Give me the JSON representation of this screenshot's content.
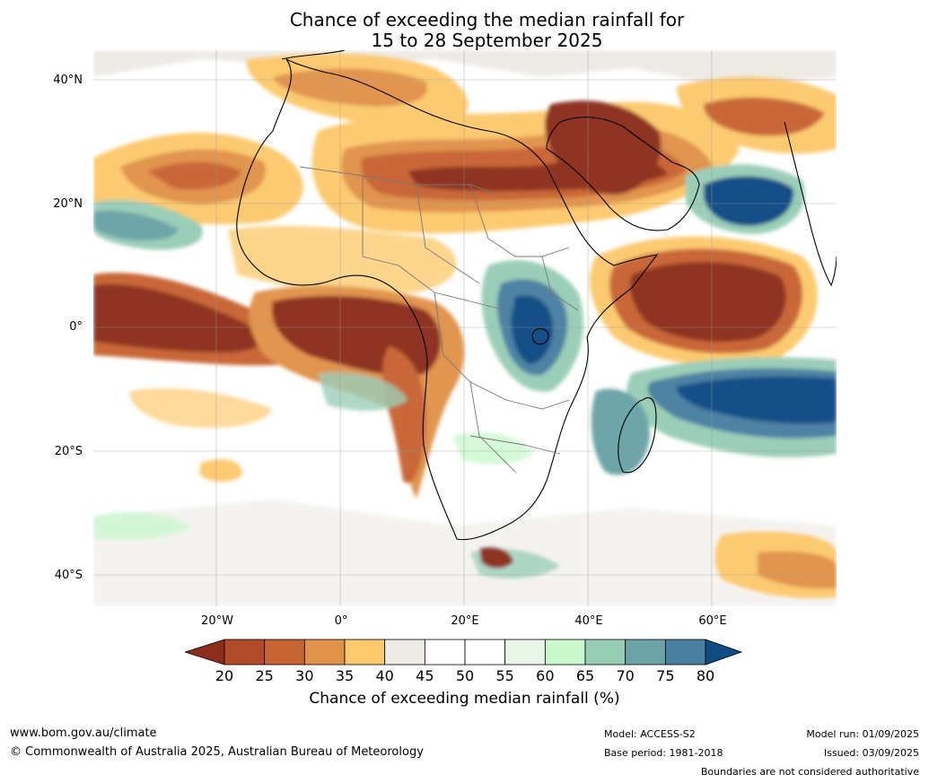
{
  "title": {
    "line1": "Chance of exceeding the median rainfall for",
    "line2": "15 to 28 September 2025"
  },
  "map": {
    "latitude_labels": [
      "40°N",
      "20°N",
      "0°",
      "20°S",
      "40°S"
    ],
    "longitude_labels": [
      "20°W",
      "0°",
      "20°E",
      "40°E",
      "60°E"
    ]
  },
  "colorbar": {
    "label": "Chance of exceeding median rainfall (%)",
    "ticks": [
      "20",
      "25",
      "30",
      "35",
      "40",
      "45",
      "50",
      "55",
      "60",
      "65",
      "70",
      "75",
      "80"
    ],
    "colors": [
      "#8c2d1c",
      "#b04a2a",
      "#c86432",
      "#e0924a",
      "#fcc96c",
      "#eeebe6",
      "#ffffff",
      "#ffffff",
      "#e8f6e8",
      "#c8f8cc",
      "#98cdb6",
      "#6ba3a6",
      "#4a7fa0",
      "#104c84"
    ]
  },
  "footer": {
    "website": "www.bom.gov.au/climate",
    "copyright": "© Commonwealth of Australia 2025, Australian Bureau of Meteorology",
    "model": "Model: ACCESS-S2",
    "base_period": "Base period: 1981-2018",
    "model_run": "Model run: 01/09/2025",
    "issued": "Issued: 03/09/2025",
    "disclaimer": "Boundaries are not considered authoritative"
  }
}
